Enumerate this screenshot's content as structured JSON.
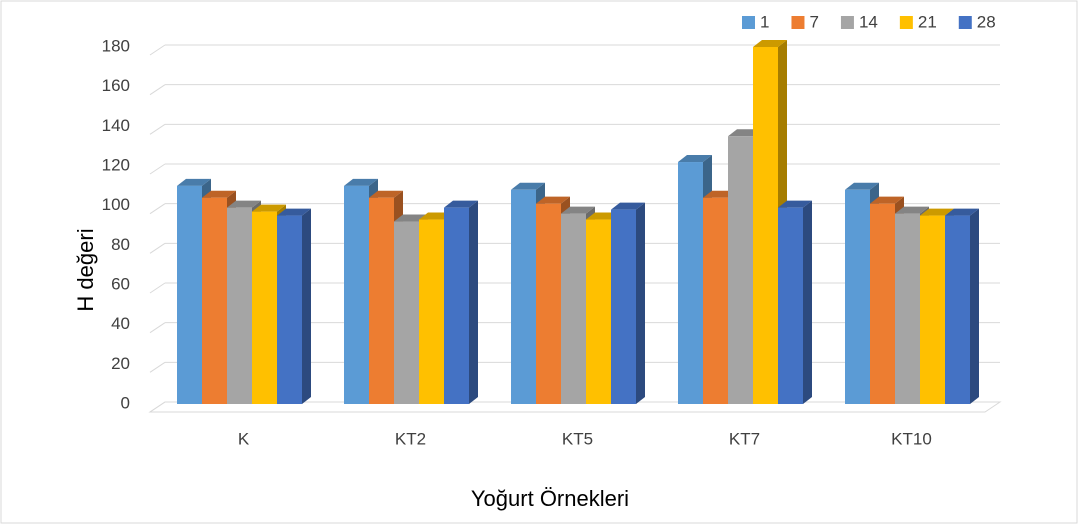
{
  "chart_data": {
    "type": "bar3d",
    "title": null,
    "x_label": "Yoğurt Örnekleri",
    "y_label": "H değeri",
    "categories": [
      "K",
      "KT2",
      "KT5",
      "KT7",
      "KT10"
    ],
    "series": [
      {
        "name": "1",
        "color": "#5b9bd5",
        "values": [
          110,
          110,
          108,
          122,
          108
        ]
      },
      {
        "name": "7",
        "color": "#ed7d31",
        "values": [
          104,
          104,
          101,
          104,
          101
        ]
      },
      {
        "name": "14",
        "color": "#a5a5a5",
        "values": [
          99,
          92,
          96,
          135,
          96
        ]
      },
      {
        "name": "21",
        "color": "#ffc000",
        "values": [
          97,
          93,
          93,
          180,
          95
        ]
      },
      {
        "name": "28",
        "color": "#4472c4",
        "values": [
          95,
          99,
          98,
          99,
          95
        ]
      }
    ],
    "ylim": [
      0,
      180
    ],
    "yticks": [
      0,
      20,
      40,
      60,
      80,
      100,
      120,
      140,
      160,
      180
    ],
    "grid": true,
    "legend": "top-right"
  }
}
